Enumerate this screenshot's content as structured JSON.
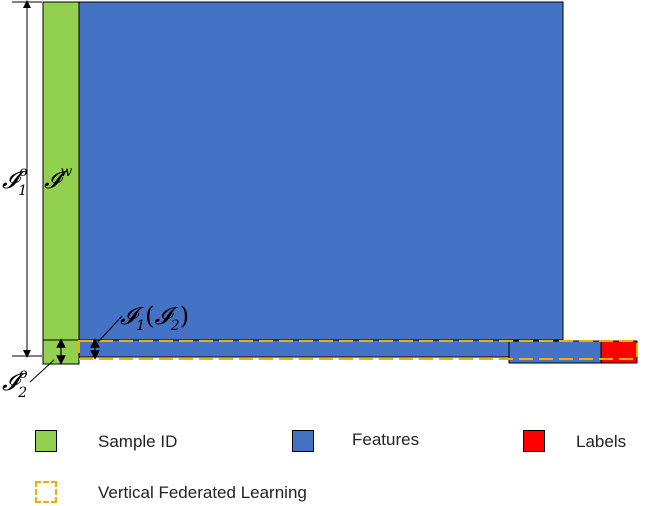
{
  "labels": {
    "full_set_main": "𝓘",
    "full_set_sub": "1",
    "full_set_sup": "o",
    "weak_set_main": "𝓘",
    "weak_set_sup": "w",
    "overlap_main": "𝓘",
    "overlap_sub": "1",
    "overlap_paren_open": "(",
    "overlap_inner_main": "𝓘",
    "overlap_inner_sub": "2",
    "overlap_paren_close": ")",
    "passive_set_main": "𝓘",
    "passive_set_sub": "2",
    "passive_set_sup": "o"
  },
  "legend": {
    "sample_id": "Sample ID",
    "features": "Features",
    "labels": "Labels",
    "vfl": "Vertical Federated Learning"
  },
  "colors": {
    "sample_id": "#92d050",
    "features": "#4472c4",
    "labels": "#ff0000",
    "vfl_border": "#f0b000",
    "outline": "#000000"
  }
}
